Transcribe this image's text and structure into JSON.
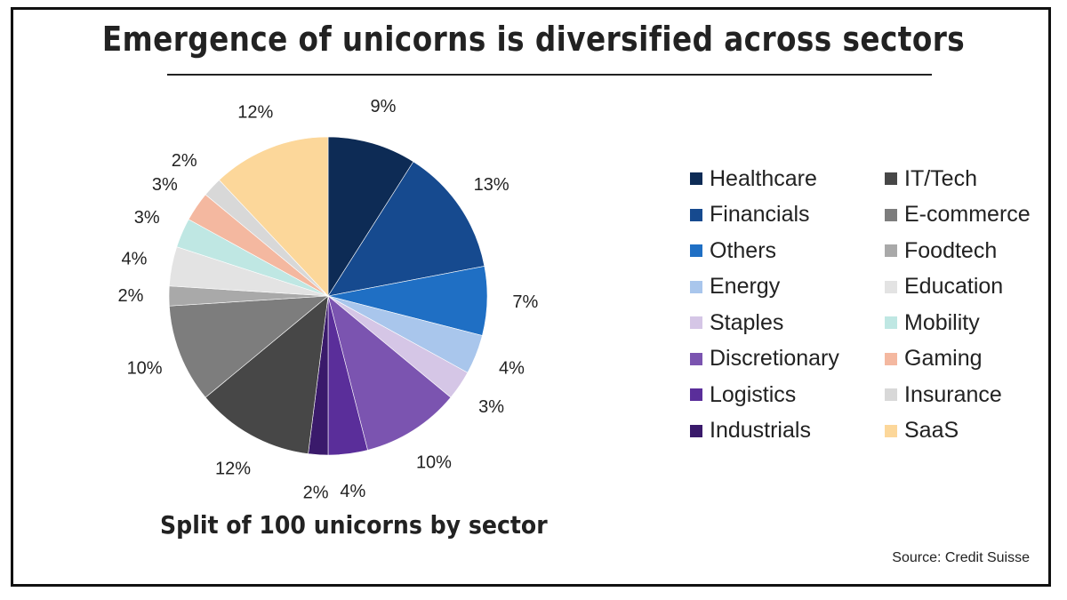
{
  "title": "Emergence of unicorns is diversified across sectors",
  "subtitle": "Split of 100 unicorns by sector",
  "source": "Source: Credit Suisse",
  "chart_data": {
    "type": "pie",
    "title": "Emergence of unicorns is diversified across sectors",
    "subtitle": "Split of 100 unicorns by sector",
    "direction": "clockwise from top",
    "slices": [
      {
        "label": "Healthcare",
        "value": 9,
        "value_label": "9%",
        "color": "#0d2b55"
      },
      {
        "label": "Financials",
        "value": 13,
        "value_label": "13%",
        "color": "#164a8f"
      },
      {
        "label": "Others",
        "value": 7,
        "value_label": "7%",
        "color": "#1f6fc4"
      },
      {
        "label": "Energy",
        "value": 4,
        "value_label": "4%",
        "color": "#a9c6ec"
      },
      {
        "label": "Staples",
        "value": 3,
        "value_label": "3%",
        "color": "#d5c6e6"
      },
      {
        "label": "Discretionary",
        "value": 10,
        "value_label": "10%",
        "color": "#7b54b0"
      },
      {
        "label": "Logistics",
        "value": 4,
        "value_label": "4%",
        "color": "#5a2e9a"
      },
      {
        "label": "Industrials",
        "value": 2,
        "value_label": "2%",
        "color": "#3a1a6b"
      },
      {
        "label": "IT/Tech",
        "value": 12,
        "value_label": "12%",
        "color": "#474747"
      },
      {
        "label": "E-commerce",
        "value": 10,
        "value_label": "10%",
        "color": "#7d7d7d"
      },
      {
        "label": "Foodtech",
        "value": 2,
        "value_label": "2%",
        "color": "#a9a9a9"
      },
      {
        "label": "Education",
        "value": 4,
        "value_label": "4%",
        "color": "#e3e3e3"
      },
      {
        "label": "Mobility",
        "value": 3,
        "value_label": "3%",
        "color": "#bfe7e3"
      },
      {
        "label": "Gaming",
        "value": 3,
        "value_label": "3%",
        "color": "#f4b8a0"
      },
      {
        "label": "Insurance",
        "value": 2,
        "value_label": "2%",
        "color": "#d8d8d8"
      },
      {
        "label": "SaaS",
        "value": 12,
        "value_label": "12%",
        "color": "#fcd79a"
      }
    ]
  }
}
